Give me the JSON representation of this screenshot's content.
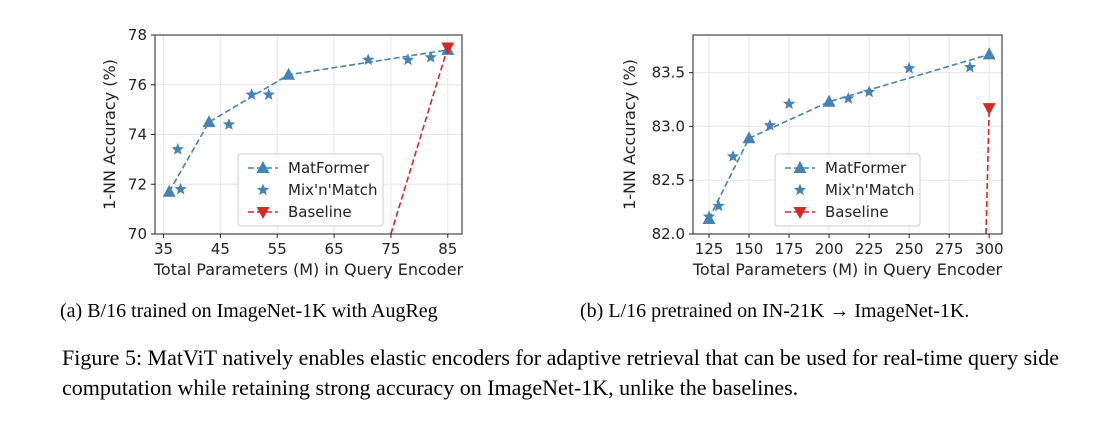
{
  "captions": {
    "left": "(a) B/16 trained on ImageNet-1K with AugReg",
    "right": "(b) L/16 pretrained on IN-21K → ImageNet-1K.",
    "figure": "Figure 5: MatViT natively enables elastic encoders for adaptive retrieval that can be used for real-time query side computation while retaining strong accuracy on ImageNet-1K, unlike the baselines."
  },
  "chart_data": [
    {
      "type": "line",
      "xlabel": "Total Parameters (M) in Query Encoder",
      "ylabel": "1-NN Accuracy (%)",
      "xlim": [
        33.5,
        87.5
      ],
      "ylim": [
        70,
        78
      ],
      "xticks": [
        35,
        45,
        55,
        65,
        75,
        85
      ],
      "yticks": [
        70,
        72,
        74,
        76,
        78
      ],
      "legend_position": "lower-center",
      "series": [
        {
          "name": "MatFormer",
          "color": "#4682b4",
          "style": "dashed",
          "marker": "triangle-up",
          "x": [
            36,
            43,
            57,
            85
          ],
          "y": [
            71.7,
            74.5,
            76.4,
            77.4
          ]
        },
        {
          "name": "Mix'n'Match",
          "color": "#4682b4",
          "style": "none",
          "marker": "star",
          "x": [
            37.5,
            38,
            46.5,
            50.5,
            53.5,
            71,
            78,
            82
          ],
          "y": [
            73.4,
            71.8,
            74.4,
            75.6,
            75.6,
            77.0,
            77.0,
            77.1
          ]
        },
        {
          "name": "Baseline",
          "color": "#d62728",
          "style": "dashed",
          "marker": "triangle-down",
          "x": [
            75,
            85
          ],
          "y": [
            70,
            77.5
          ]
        }
      ]
    },
    {
      "type": "line",
      "xlabel": "Total Parameters (M) in Query Encoder",
      "ylabel": "1-NN Accuracy (%)",
      "xlim": [
        115,
        308
      ],
      "ylim": [
        82.0,
        83.85
      ],
      "xticks": [
        125,
        150,
        175,
        200,
        225,
        250,
        275,
        300
      ],
      "yticks": [
        82.0,
        82.5,
        83.0,
        83.5
      ],
      "legend_position": "lower-right",
      "series": [
        {
          "name": "MatFormer",
          "color": "#4682b4",
          "style": "dashed",
          "marker": "triangle-up",
          "x": [
            125,
            150,
            200,
            300
          ],
          "y": [
            82.14,
            82.89,
            83.23,
            83.67
          ]
        },
        {
          "name": "Mix'n'Match",
          "color": "#4682b4",
          "style": "none",
          "marker": "star",
          "x": [
            125,
            131,
            140,
            163,
            175,
            212,
            225,
            250,
            288
          ],
          "y": [
            82.16,
            82.26,
            82.72,
            83.01,
            83.21,
            83.26,
            83.32,
            83.54,
            83.55
          ]
        },
        {
          "name": "Baseline",
          "color": "#d62728",
          "style": "dashed",
          "marker": "triangle-down",
          "x": [
            298,
            300
          ],
          "y": [
            82.0,
            83.17
          ]
        }
      ]
    }
  ]
}
